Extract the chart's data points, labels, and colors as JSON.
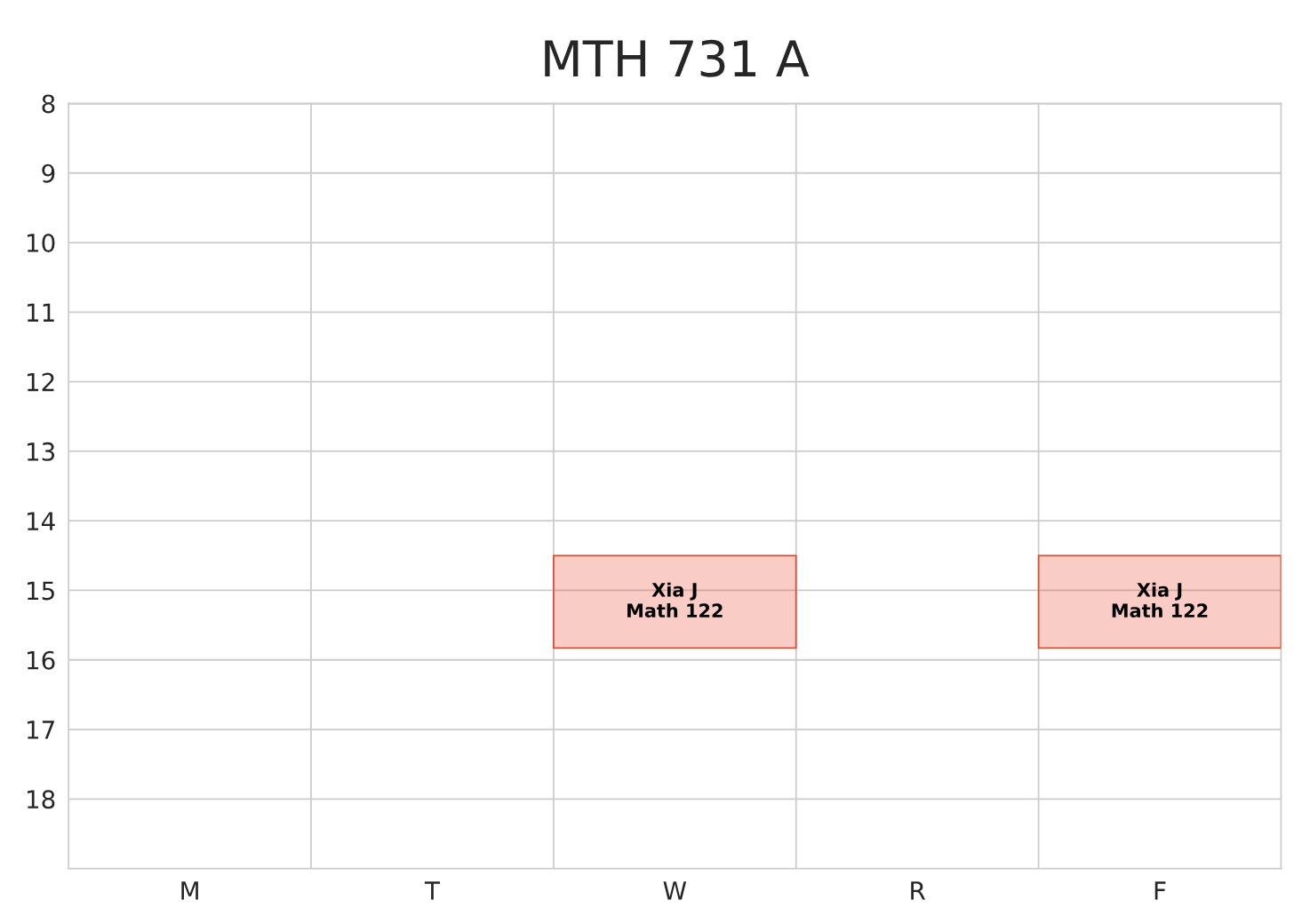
{
  "chart_data": {
    "type": "bar",
    "title": "MTH 731 A",
    "categories": [
      "M",
      "T",
      "W",
      "R",
      "F"
    ],
    "base": [
      null,
      null,
      14.5,
      null,
      14.5
    ],
    "values": [
      null,
      null,
      1.33,
      null,
      1.33
    ],
    "value_labels": [
      null,
      null,
      "Xia J\nMath 122",
      null,
      "Xia J\nMath 122"
    ],
    "color": "#e8472f",
    "ylim": [
      19,
      8
    ],
    "yticks": [
      8,
      9,
      10,
      11,
      12,
      13,
      14,
      15,
      16,
      17,
      18
    ],
    "grid": true
  }
}
